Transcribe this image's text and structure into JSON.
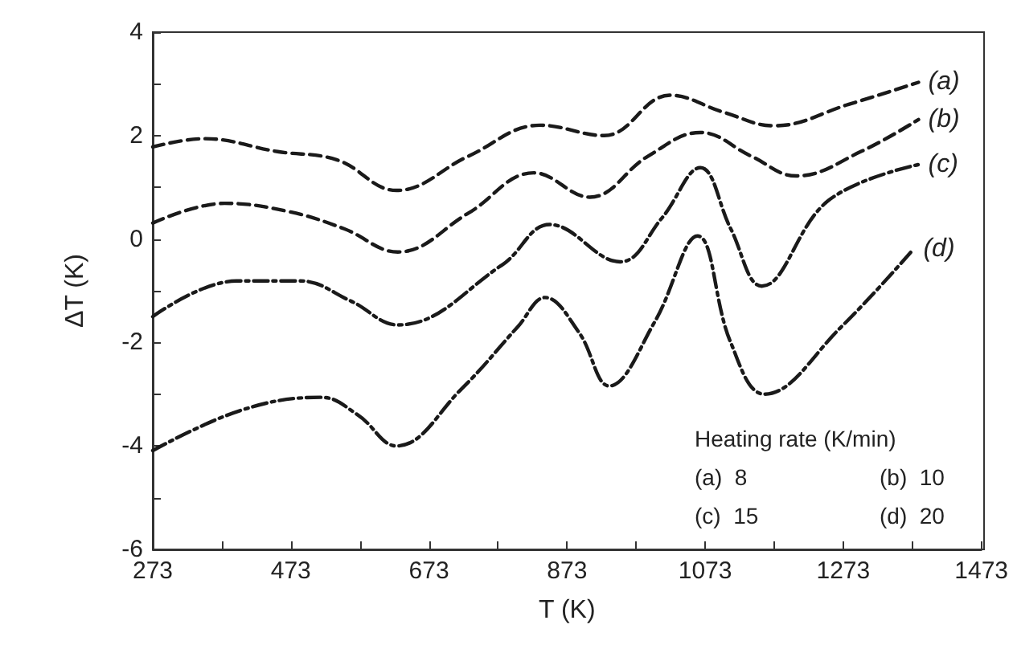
{
  "chart_data": {
    "type": "line",
    "xlabel": "T (K)",
    "ylabel": "ΔT (K)",
    "xlim": [
      273,
      1473
    ],
    "ylim": [
      -6,
      4
    ],
    "xticks": [
      273,
      {
        "value": 373,
        "label": null
      },
      473,
      {
        "value": 573,
        "label": null
      },
      673,
      {
        "value": 773,
        "label": null
      },
      873,
      {
        "value": 973,
        "label": null
      },
      1073,
      {
        "value": 1173,
        "label": null
      },
      1273,
      {
        "value": 1373,
        "label": null
      },
      1473
    ],
    "yticks": [
      -6,
      {
        "value": -5,
        "label": null
      },
      -4,
      {
        "value": -3,
        "label": null
      },
      -2,
      {
        "value": -1,
        "label": null
      },
      0,
      {
        "value": 1,
        "label": null
      },
      2,
      {
        "value": 3,
        "label": null
      },
      4
    ],
    "grid": false,
    "legend": false,
    "marker": "none",
    "annotations": [
      "Heating rate (K/min)",
      "(a)  8",
      "(b)  10",
      "(c)  15",
      "(d)  20"
    ],
    "series": [
      {
        "name": "(a)",
        "color": "#1a1a1a",
        "line_style": "dashed",
        "x": [
          273,
          347,
          454,
          540,
          626,
          730,
          834,
          927,
          1022,
          1100,
          1173,
          1280,
          1382
        ],
        "values": [
          1.78,
          1.94,
          1.69,
          1.53,
          0.94,
          1.6,
          2.2,
          2.0,
          2.78,
          2.45,
          2.19,
          2.6,
          3.03
        ]
      },
      {
        "name": "(b)",
        "color": "#1a1a1a",
        "line_style": "dashed",
        "x": [
          273,
          377,
          470,
          550,
          628,
          730,
          825,
          906,
          990,
          1066,
          1140,
          1205,
          1300,
          1382
        ],
        "values": [
          0.31,
          0.69,
          0.53,
          0.2,
          -0.25,
          0.5,
          1.28,
          0.81,
          1.6,
          2.06,
          1.6,
          1.22,
          1.7,
          2.31
        ]
      },
      {
        "name": "(c)",
        "color": "#1a1a1a",
        "line_style": "dashdot",
        "x": [
          273,
          394,
          486,
          560,
          628,
          779,
          848,
          950,
          1010,
          1066,
          1110,
          1155,
          1252,
          1382
        ],
        "values": [
          -1.5,
          -0.81,
          -0.81,
          -1.2,
          -1.66,
          -0.5,
          0.28,
          -0.44,
          0.4,
          1.38,
          0.2,
          -0.91,
          0.75,
          1.44
        ]
      },
      {
        "name": "(d)",
        "color": "#1a1a1a",
        "line_style": "dashdot",
        "x": [
          273,
          401,
          517,
          570,
          626,
          720,
          802,
          841,
          890,
          934,
          1000,
          1062,
          1110,
          1159,
          1270,
          1375
        ],
        "values": [
          -4.09,
          -3.31,
          -3.06,
          -3.4,
          -4.0,
          -2.9,
          -1.69,
          -1.13,
          -1.8,
          -2.84,
          -1.6,
          0.06,
          -2.0,
          -3.0,
          -1.7,
          -0.19
        ]
      }
    ]
  }
}
